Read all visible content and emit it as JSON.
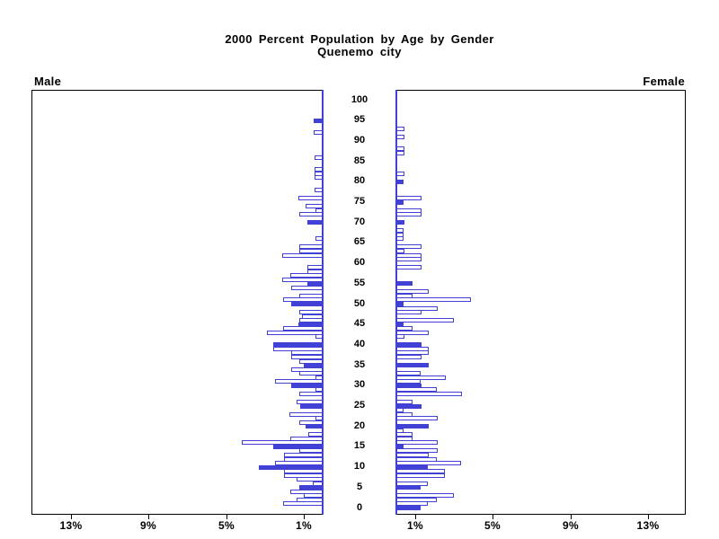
{
  "title": {
    "line1": "2000 Percent Population by Age by Gender",
    "line2": "Quenemo city"
  },
  "panels": {
    "male_label": "Male",
    "female_label": "Female"
  },
  "axes": {
    "age_ticks": [
      0,
      5,
      10,
      15,
      20,
      25,
      30,
      35,
      40,
      45,
      50,
      55,
      60,
      65,
      70,
      75,
      80,
      85,
      90,
      95,
      100
    ],
    "pct_tick_labels_male": [
      "13%",
      "9%",
      "5%",
      "1%"
    ],
    "pct_tick_values_male": [
      13,
      9,
      5,
      1
    ],
    "pct_tick_labels_female": [
      "1%",
      "5%",
      "9%",
      "13%"
    ],
    "pct_tick_values_female": [
      1,
      5,
      9,
      13
    ]
  },
  "colors": {
    "bar_blue": "#4141d6",
    "axis_black": "#000000",
    "background": "#ffffff"
  },
  "chart_data": {
    "type": "bar",
    "subtype": "population-pyramid",
    "title": "2000 Percent Population by Age by Gender",
    "subtitle": "Quenemo city",
    "x_unit": "percent of population",
    "x_max": 15,
    "x_ticks_percent": [
      1,
      5,
      9,
      13
    ],
    "age_min": 0,
    "age_max": 100,
    "bar_style_rule": "ages divisible by 5 are solid filled; other ages are outlined (white fill, blue border)",
    "legend_position": "none",
    "grid": false,
    "ages": [
      0,
      1,
      2,
      3,
      4,
      5,
      6,
      7,
      8,
      9,
      10,
      11,
      12,
      13,
      14,
      15,
      16,
      17,
      18,
      19,
      20,
      21,
      22,
      23,
      24,
      25,
      26,
      27,
      28,
      29,
      30,
      31,
      32,
      33,
      34,
      35,
      36,
      37,
      38,
      39,
      40,
      41,
      42,
      43,
      44,
      45,
      46,
      47,
      48,
      49,
      50,
      51,
      52,
      53,
      54,
      55,
      56,
      57,
      58,
      59,
      60,
      61,
      62,
      63,
      64,
      65,
      66,
      67,
      68,
      69,
      70,
      71,
      72,
      73,
      74,
      75,
      76,
      77,
      78,
      79,
      80,
      81,
      82,
      83,
      84,
      85,
      86,
      87,
      88,
      89,
      90,
      91,
      92,
      93,
      94,
      95,
      96,
      97,
      98,
      99,
      100
    ],
    "series": [
      {
        "name": "Male",
        "direction": "left",
        "values": [
          0,
          2.1,
          1.39,
          1.03,
          1.7,
          1.27,
          0.54,
          1.39,
          2.04,
          2.04,
          3.32,
          2.48,
          2.04,
          2.04,
          1.23,
          2.58,
          4.2,
          1.7,
          0.77,
          0,
          0.93,
          1.26,
          0.42,
          1.74,
          0,
          1.19,
          1.39,
          0,
          1.23,
          0.4,
          1.65,
          2.5,
          0.4,
          1.23,
          1.65,
          1.0,
          1.23,
          1.65,
          1.65,
          2.58,
          2.58,
          0,
          0.4,
          2.93,
          2.08,
          1.3,
          1.23,
          1.1,
          1.26,
          0,
          1.66,
          2.1,
          1.26,
          0,
          1.67,
          0.83,
          2.11,
          1.71,
          0.83,
          0.83,
          0,
          0,
          2.11,
          1.27,
          1.27,
          0,
          0.42,
          0,
          0,
          0,
          0.83,
          0,
          1.26,
          0.4,
          0.93,
          0,
          1.31,
          0,
          0.46,
          0,
          0,
          0.46,
          0.46,
          0.46,
          0,
          0,
          0.46,
          0,
          0,
          0,
          0,
          0,
          0.5,
          0,
          0,
          0.5,
          0,
          0,
          0,
          0,
          0
        ]
      },
      {
        "name": "Female",
        "direction": "right",
        "values": [
          1.31,
          1.68,
          2.14,
          3.0,
          0,
          1.31,
          1.68,
          0,
          2.54,
          2.54,
          1.68,
          3.38,
          2.14,
          1.69,
          2.15,
          0.43,
          2.15,
          0.86,
          0.86,
          0.43,
          1.69,
          0,
          2.15,
          0.86,
          0.4,
          1.35,
          0.86,
          0,
          3.42,
          2.12,
          1.33,
          1.28,
          2.58,
          1.28,
          0,
          1.69,
          0,
          1.33,
          1.69,
          1.69,
          1.33,
          0,
          0.46,
          1.69,
          0.86,
          0.43,
          2.99,
          0,
          1.33,
          2.15,
          0.43,
          3.87,
          0.86,
          1.71,
          0,
          0.86,
          0,
          0,
          0,
          1.33,
          0,
          1.33,
          1.33,
          0.46,
          1.33,
          0,
          0.43,
          0.43,
          0.43,
          0,
          0.46,
          0,
          1.33,
          1.33,
          0,
          0.43,
          1.33,
          0,
          0,
          0,
          0.43,
          0,
          0.46,
          0,
          0,
          0,
          0,
          0.46,
          0.46,
          0,
          0,
          0.46,
          0,
          0.46,
          0,
          0,
          0,
          0,
          0,
          0,
          0
        ]
      }
    ]
  }
}
